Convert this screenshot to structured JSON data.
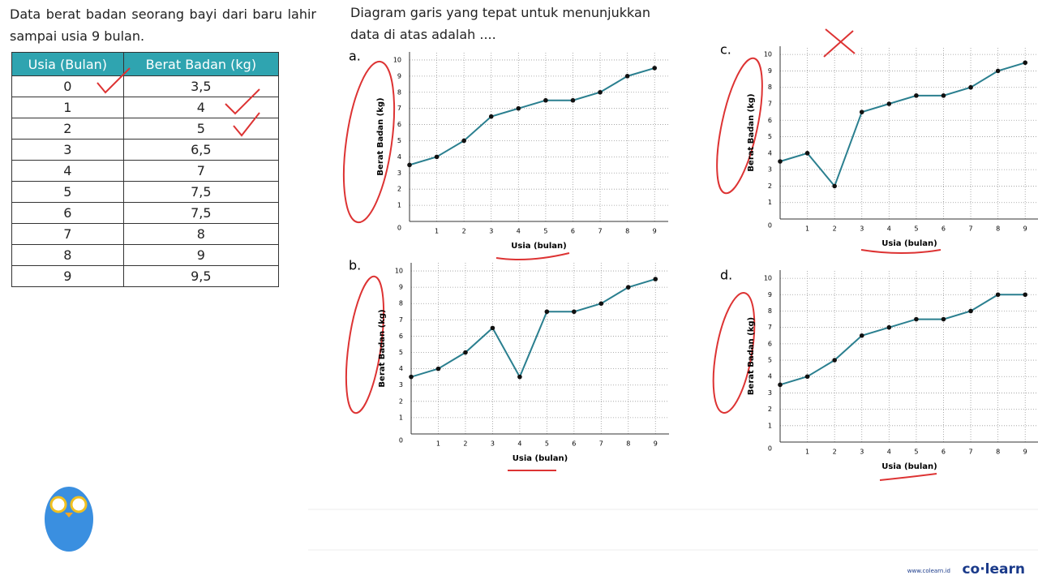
{
  "question": "Data berat badan seorang bayi dari baru lahir sampai usia 9 bulan.",
  "table": {
    "header": [
      "Usia (Bulan)",
      "Berat Badan (kg)"
    ],
    "rows": [
      [
        "0",
        "3,5"
      ],
      [
        "1",
        "4"
      ],
      [
        "2",
        "5"
      ],
      [
        "3",
        "6,5"
      ],
      [
        "4",
        "7"
      ],
      [
        "5",
        "7,5"
      ],
      [
        "6",
        "7,5"
      ],
      [
        "7",
        "8"
      ],
      [
        "8",
        "9"
      ],
      [
        "9",
        "9,5"
      ]
    ]
  },
  "prompt": "Diagram garis yang tepat untuk menunjukkan data di atas adalah ....",
  "chart_data": [
    {
      "type": "line",
      "label": "a.",
      "xlabel": "Usia (bulan)",
      "ylabel": "Berat Badan (kg)",
      "color": "#2a7f8f",
      "grid": true,
      "x": [
        0,
        1,
        2,
        3,
        4,
        5,
        6,
        7,
        8,
        9
      ],
      "values": [
        3.5,
        4,
        5,
        6.5,
        7,
        7.5,
        7.5,
        8,
        9,
        9.5
      ],
      "xlim": [
        0,
        9.5
      ],
      "ylim": [
        0,
        10.5
      ],
      "xticks": [
        1,
        2,
        3,
        4,
        5,
        6,
        7,
        8,
        9
      ],
      "yticks": [
        0,
        1,
        2,
        3,
        4,
        5,
        6,
        7,
        8,
        9,
        10
      ]
    },
    {
      "type": "line",
      "label": "b.",
      "xlabel": "Usia (bulan)",
      "ylabel": "Berat Badan (kg)",
      "color": "#2a7f8f",
      "grid": true,
      "x": [
        0,
        1,
        2,
        3,
        4,
        5,
        6,
        7,
        8,
        9
      ],
      "values": [
        3.5,
        4,
        5,
        6.5,
        3.5,
        7.5,
        7.5,
        8,
        9,
        9.5
      ],
      "xlim": [
        0,
        9.5
      ],
      "ylim": [
        0,
        10.5
      ],
      "xticks": [
        1,
        2,
        3,
        4,
        5,
        6,
        7,
        8,
        9
      ],
      "yticks": [
        0,
        1,
        2,
        3,
        4,
        5,
        6,
        7,
        8,
        9,
        10
      ]
    },
    {
      "type": "line",
      "label": "c.",
      "xlabel": "Usia (bulan)",
      "ylabel": "Berat Badan (kg)",
      "color": "#2a7f8f",
      "grid": true,
      "x": [
        0,
        1,
        2,
        3,
        4,
        5,
        6,
        7,
        8,
        9
      ],
      "values": [
        3.5,
        4,
        2,
        6.5,
        7,
        7.5,
        7.5,
        8,
        9,
        9.5
      ],
      "xlim": [
        0,
        9.5
      ],
      "ylim": [
        0,
        10.5
      ],
      "xticks": [
        1,
        2,
        3,
        4,
        5,
        6,
        7,
        8,
        9
      ],
      "yticks": [
        0,
        1,
        2,
        3,
        4,
        5,
        6,
        7,
        8,
        9,
        10
      ]
    },
    {
      "type": "line",
      "label": "d.",
      "xlabel": "Usia (bulan)",
      "ylabel": "Berat Badan (kg)",
      "color": "#2a7f8f",
      "grid": true,
      "x": [
        0,
        1,
        2,
        3,
        4,
        5,
        6,
        7,
        8,
        9
      ],
      "values": [
        3.5,
        4,
        5,
        6.5,
        7,
        7.5,
        7.5,
        8,
        9,
        9
      ],
      "xlim": [
        0,
        9.5
      ],
      "ylim": [
        0,
        10.5
      ],
      "xticks": [
        1,
        2,
        3,
        4,
        5,
        6,
        7,
        8,
        9
      ],
      "yticks": [
        0,
        1,
        2,
        3,
        4,
        5,
        6,
        7,
        8,
        9,
        10
      ]
    }
  ],
  "brand": {
    "url": "www.colearn.id",
    "name": "co·learn"
  }
}
